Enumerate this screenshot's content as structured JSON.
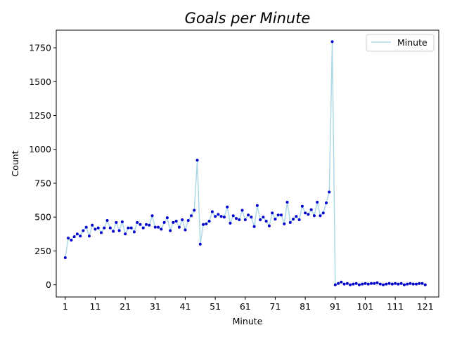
{
  "chart_data": {
    "type": "line",
    "title": "Goals per Minute",
    "xlabel": "Minute",
    "ylabel": "Count",
    "xlim": [
      -2,
      125.5
    ],
    "ylim": [
      -90,
      1880
    ],
    "xticks": [
      1,
      11,
      21,
      31,
      41,
      51,
      61,
      71,
      81,
      91,
      101,
      111,
      121
    ],
    "yticks": [
      0,
      250,
      500,
      750,
      1000,
      1250,
      1500,
      1750
    ],
    "legend": {
      "placement": "top-right"
    },
    "grid": false,
    "colors": {
      "line": "#add8e6",
      "marker": "#0000cd"
    },
    "series": [
      {
        "name": "Minute",
        "x": [
          1,
          2,
          3,
          4,
          5,
          6,
          7,
          8,
          9,
          10,
          11,
          12,
          13,
          14,
          15,
          16,
          17,
          18,
          19,
          20,
          21,
          22,
          23,
          24,
          25,
          26,
          27,
          28,
          29,
          30,
          31,
          32,
          33,
          34,
          35,
          36,
          37,
          38,
          39,
          40,
          41,
          42,
          43,
          44,
          45,
          46,
          47,
          48,
          49,
          50,
          51,
          52,
          53,
          54,
          55,
          56,
          57,
          58,
          59,
          60,
          61,
          62,
          63,
          64,
          65,
          66,
          67,
          68,
          69,
          70,
          71,
          72,
          73,
          74,
          75,
          76,
          77,
          78,
          79,
          80,
          81,
          82,
          83,
          84,
          85,
          86,
          87,
          88,
          89,
          90,
          91,
          92,
          93,
          94,
          95,
          96,
          97,
          98,
          99,
          100,
          101,
          102,
          103,
          104,
          105,
          106,
          107,
          108,
          109,
          110,
          111,
          112,
          113,
          114,
          115,
          116,
          117,
          118,
          119,
          120,
          121
        ],
        "values": [
          200,
          345,
          330,
          355,
          375,
          360,
          400,
          425,
          360,
          440,
          410,
          420,
          385,
          420,
          475,
          420,
          395,
          460,
          400,
          465,
          375,
          420,
          420,
          390,
          460,
          445,
          420,
          445,
          440,
          510,
          425,
          425,
          410,
          460,
          495,
          400,
          460,
          470,
          425,
          480,
          405,
          475,
          510,
          550,
          920,
          300,
          445,
          450,
          470,
          540,
          505,
          520,
          505,
          500,
          575,
          455,
          510,
          490,
          480,
          550,
          480,
          515,
          500,
          430,
          585,
          480,
          500,
          470,
          435,
          530,
          485,
          515,
          515,
          450,
          610,
          460,
          485,
          505,
          480,
          580,
          530,
          520,
          555,
          510,
          610,
          510,
          530,
          605,
          685,
          1795,
          0,
          10,
          20,
          5,
          10,
          0,
          5,
          10,
          0,
          5,
          10,
          5,
          10,
          10,
          15,
          5,
          0,
          5,
          10,
          5,
          10,
          5,
          10,
          0,
          5,
          10,
          5,
          5,
          10,
          10,
          0
        ]
      }
    ]
  }
}
